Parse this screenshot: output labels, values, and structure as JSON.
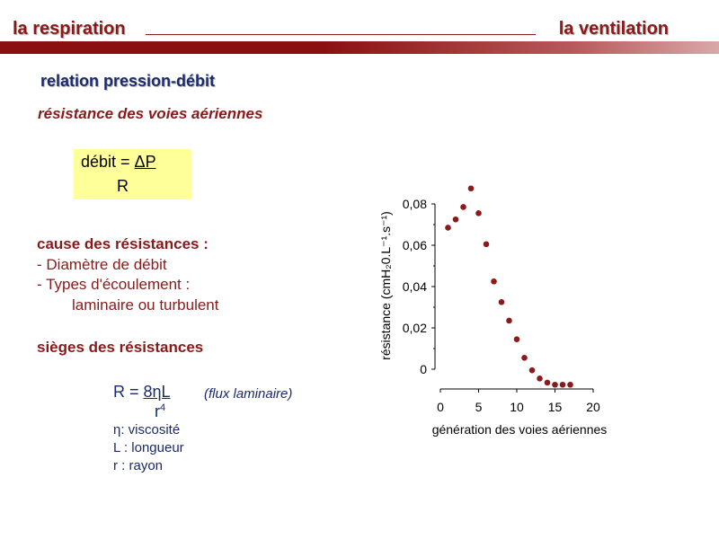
{
  "header": {
    "left_title": "la respiration",
    "right_title": "la ventilation"
  },
  "subtitle": "relation pression-débit",
  "section_title": "résistance des voies aériennes",
  "formula_box": {
    "lhs": "débit = ",
    "numerator": "ΔP",
    "denominator": "R"
  },
  "causes": {
    "title": "cause des résistances :",
    "items": [
      "- Diamètre de débit",
      "- Types d'écoulement :",
      "laminaire ou turbulent"
    ]
  },
  "sieges": {
    "title": "sièges des résistances",
    "formula_lhs": "R = ",
    "formula_num": "8ηL",
    "formula_den": "r",
    "formula_den_exp": "4",
    "flux_note": "(flux laminaire)",
    "legend": [
      "η: viscosité",
      "L : longueur",
      "r : rayon"
    ]
  },
  "chart_data": {
    "type": "scatter",
    "xlabel": "génération des voies aériennes",
    "ylabel": "résistance (cmH₂0.L⁻¹.s⁻¹)",
    "xlim": [
      0,
      20
    ],
    "ylim": [
      0,
      0.08
    ],
    "xticks": [
      "0",
      "5",
      "10",
      "15",
      "20"
    ],
    "yticks": [
      "0",
      "0,02",
      "0,04",
      "0,06",
      "0,08"
    ],
    "grid": false,
    "marker_color": "#8b1a1a",
    "x": [
      1,
      2,
      3,
      4,
      5,
      6,
      7,
      8,
      9,
      10,
      11,
      12,
      13,
      14,
      15,
      16,
      17
    ],
    "y": [
      0.0685,
      0.0725,
      0.0785,
      0.0875,
      0.0755,
      0.0605,
      0.0425,
      0.0325,
      0.0235,
      0.0145,
      0.0055,
      -0.0005,
      -0.0045,
      -0.0065,
      -0.0075,
      -0.0075,
      -0.0075
    ]
  },
  "colors": {
    "accent": "#8a1a1a",
    "navy": "#1a2a6c",
    "formula_bg": "#ffff99"
  }
}
